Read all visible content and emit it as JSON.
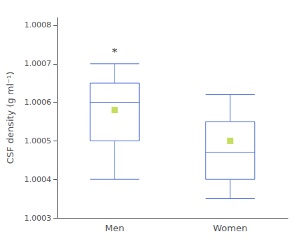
{
  "chart_data": {
    "type": "box",
    "categories": [
      "Men",
      "Women"
    ],
    "p10": [
      1.0004,
      1.00035
    ],
    "q1": [
      1.0005,
      1.0004
    ],
    "median": [
      1.0006,
      1.00047
    ],
    "q3": [
      1.00065,
      1.00055
    ],
    "p90": [
      1.0007,
      1.00062
    ],
    "mean": [
      1.00058,
      1.0005
    ],
    "marker": "square",
    "ylabel": "CSF density (g ml⁻¹)",
    "ylim": [
      1.0003,
      1.00082
    ],
    "yticks": [
      1.0003,
      1.0004,
      1.0005,
      1.0006,
      1.0007,
      1.0008
    ],
    "grid": false,
    "annotations": [
      {
        "text": "*",
        "x": "Men",
        "y": 1.000715
      }
    ]
  }
}
